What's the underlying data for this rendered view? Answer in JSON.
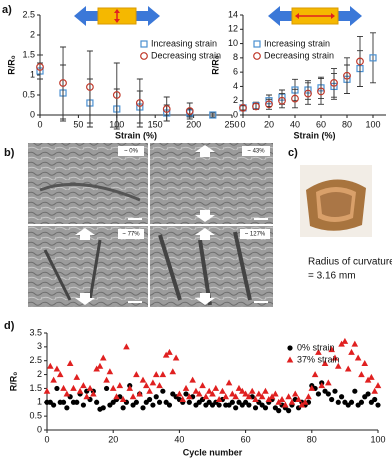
{
  "panel_labels": {
    "a": "a)",
    "b": "b)",
    "c": "c)",
    "d": "d)"
  },
  "images": {
    "labels": [
      "~ 0%",
      "~ 43%",
      "~ 77%",
      "~ 127%"
    ]
  },
  "photo_caption": [
    "Radius of curvature",
    "= 3.16 mm"
  ],
  "chart_data": [
    {
      "type": "scatter",
      "xlabel": "Strain (%)",
      "ylabel": "R/R₀",
      "xlim": [
        0,
        250
      ],
      "xticks": [
        0,
        50,
        100,
        150,
        200,
        250
      ],
      "ylim": [
        0,
        2.5
      ],
      "yticks": [
        0,
        0.5,
        1,
        1.5,
        2,
        2.5
      ],
      "grid": false,
      "legend": "upper right",
      "series": [
        {
          "name": "Increasing strain",
          "color": "#4a8fd0",
          "marker": "square",
          "x": [
            0,
            30,
            65,
            100,
            130,
            165,
            195,
            225
          ],
          "values": [
            1.1,
            0.55,
            0.3,
            0.15,
            0.2,
            0.05,
            0.05,
            0.0
          ],
          "errors": [
            0.2,
            0.7,
            0.6,
            0.5,
            0.4,
            0.2,
            0.1,
            0.05
          ]
        },
        {
          "name": "Decreasing strain",
          "color": "#c0392b",
          "marker": "circle",
          "x": [
            0,
            30,
            65,
            100,
            130,
            165,
            195
          ],
          "values": [
            1.2,
            0.8,
            0.7,
            0.5,
            0.3,
            0.15,
            0.1
          ],
          "errors": [
            0.3,
            0.9,
            0.9,
            0.8,
            0.6,
            0.3,
            0.2
          ]
        }
      ]
    },
    {
      "type": "scatter",
      "xlabel": "Strain (%)",
      "ylabel": "R/R₀",
      "xlim": [
        0,
        110
      ],
      "xticks": [
        0,
        20,
        40,
        60,
        80,
        100
      ],
      "ylim": [
        0,
        14
      ],
      "yticks": [
        0,
        2,
        4,
        6,
        8,
        10,
        12,
        14
      ],
      "grid": false,
      "legend": "upper left",
      "series": [
        {
          "name": "Increasing strain",
          "color": "#4a8fd0",
          "marker": "square",
          "x": [
            0,
            10,
            20,
            30,
            40,
            50,
            60,
            70,
            80,
            90,
            100
          ],
          "values": [
            1,
            1.3,
            2,
            2.5,
            3.5,
            3.5,
            3.8,
            4,
            5,
            6.5,
            8
          ],
          "errors": [
            0.3,
            0.5,
            0.8,
            1,
            1.5,
            1.3,
            1.5,
            1.8,
            2,
            2.5,
            3.5
          ]
        },
        {
          "name": "Decreasing strain",
          "color": "#c0392b",
          "marker": "circle",
          "x": [
            0,
            10,
            20,
            30,
            40,
            50,
            60,
            70,
            80,
            90
          ],
          "values": [
            1,
            1.2,
            1.5,
            2,
            2.3,
            3,
            3.3,
            4.5,
            5.5,
            7.5
          ],
          "errors": [
            0.3,
            0.4,
            0.7,
            1,
            1.3,
            1.5,
            1.8,
            2,
            2.5,
            3.5
          ]
        }
      ]
    },
    {
      "type": "scatter",
      "xlabel": "Cycle number",
      "ylabel": "R/R₀",
      "xlim": [
        0,
        100
      ],
      "xticks": [
        0,
        20,
        40,
        60,
        80,
        100
      ],
      "ylim": [
        0,
        3.5
      ],
      "yticks": [
        0,
        0.5,
        1,
        1.5,
        2,
        2.5,
        3,
        3.5
      ],
      "grid": false,
      "legend": "upper right",
      "series": [
        {
          "name": "0% strain",
          "color": "#000000",
          "marker": "dot",
          "x": [
            0,
            1,
            2,
            3,
            4,
            5,
            6,
            7,
            8,
            9,
            10,
            11,
            12,
            13,
            14,
            15,
            16,
            17,
            18,
            19,
            20,
            21,
            22,
            23,
            24,
            25,
            26,
            27,
            28,
            29,
            30,
            31,
            32,
            33,
            34,
            35,
            36,
            37,
            38,
            39,
            40,
            41,
            42,
            43,
            44,
            45,
            46,
            47,
            48,
            49,
            50,
            51,
            52,
            53,
            54,
            55,
            56,
            57,
            58,
            59,
            60,
            61,
            62,
            63,
            64,
            65,
            66,
            67,
            68,
            69,
            70,
            71,
            72,
            73,
            74,
            75,
            76,
            77,
            78,
            79,
            80,
            81,
            82,
            83,
            84,
            85,
            86,
            87,
            88,
            89,
            90,
            91,
            92,
            93,
            94,
            95,
            96,
            97,
            98,
            99,
            100
          ],
          "values": [
            1.0,
            1.0,
            0.9,
            1.5,
            1.0,
            1.0,
            0.8,
            1.2,
            1.0,
            1.0,
            1.3,
            0.9,
            1.4,
            1.1,
            1.4,
            1.0,
            0.75,
            0.8,
            1.5,
            0.9,
            1.0,
            1.1,
            1.2,
            0.8,
            1.0,
            1.6,
            0.9,
            1.0,
            1.3,
            0.8,
            1.0,
            1.1,
            0.9,
            1.2,
            1.0,
            1.4,
            1.0,
            0.9,
            1.3,
            1.2,
            1.1,
            1.0,
            1.3,
            1.0,
            1.2,
            0.9,
            1.0,
            1.1,
            0.9,
            1.0,
            0.9,
            1.0,
            0.9,
            1.1,
            0.9,
            0.9,
            1.0,
            0.8,
            1.0,
            0.9,
            1.0,
            0.9,
            1.2,
            0.8,
            1.0,
            0.9,
            0.8,
            1.0,
            1.1,
            0.8,
            0.7,
            0.9,
            0.8,
            0.7,
            0.9,
            1.1,
            0.8,
            1.0,
            0.9,
            1.0,
            1.6,
            1.5,
            1.3,
            1.7,
            1.4,
            1.3,
            1.1,
            1.4,
            1.0,
            1.2,
            1.0,
            0.9,
            1.0,
            1.4,
            0.9,
            1.0,
            1.2,
            1.3,
            1.0,
            1.1,
            0.9
          ]
        },
        {
          "name": "37% strain",
          "color": "#e02020",
          "marker": "triangle",
          "x": [
            0,
            1,
            2,
            3,
            4,
            5,
            6,
            7,
            8,
            9,
            10,
            11,
            12,
            13,
            14,
            15,
            16,
            17,
            18,
            19,
            20,
            21,
            22,
            23,
            24,
            25,
            26,
            27,
            28,
            29,
            30,
            31,
            32,
            33,
            34,
            35,
            36,
            37,
            38,
            39,
            40,
            41,
            42,
            43,
            44,
            45,
            46,
            47,
            48,
            49,
            50,
            51,
            52,
            53,
            54,
            55,
            56,
            57,
            58,
            59,
            60,
            61,
            62,
            63,
            64,
            65,
            66,
            67,
            68,
            69,
            70,
            71,
            72,
            73,
            74,
            75,
            76,
            77,
            78,
            79,
            80,
            81,
            82,
            83,
            84,
            85,
            86,
            87,
            88,
            89,
            90,
            91,
            92,
            93,
            94,
            95,
            96,
            97,
            98,
            99,
            100
          ],
          "values": [
            1.4,
            2.3,
            1.8,
            2.2,
            2.0,
            1.5,
            1.3,
            2.4,
            1.5,
            1.9,
            1.4,
            1.6,
            1.2,
            1.5,
            1.3,
            2.2,
            2.3,
            2.6,
            1.8,
            2.1,
            1.5,
            1.2,
            1.6,
            1.1,
            3.0,
            1.5,
            1.2,
            2.0,
            1.3,
            1.8,
            1.6,
            1.4,
            1.7,
            2.0,
            1.6,
            2.0,
            2.7,
            2.8,
            2.1,
            2.6,
            1.3,
            1.1,
            1.5,
            1.2,
            1.8,
            1.4,
            1.3,
            1.6,
            1.2,
            1.4,
            1.3,
            1.5,
            1.1,
            1.4,
            1.2,
            1.7,
            1.3,
            1.2,
            1.5,
            1.4,
            1.3,
            1.2,
            1.4,
            1.1,
            1.3,
            1.2,
            1.4,
            1.1,
            1.2,
            1.3,
            1.0,
            1.1,
            0.9,
            1.2,
            1.0,
            1.3,
            1.1,
            0.9,
            1.0,
            1.2,
            1.5,
            2.0,
            2.8,
            1.6,
            2.4,
            1.7,
            2.9,
            2.6,
            2.3,
            3.1,
            3.2,
            2.2,
            2.8,
            3.1,
            2.6,
            2.0,
            2.4,
            1.8,
            1.9,
            1.4,
            1.6
          ]
        }
      ]
    }
  ]
}
